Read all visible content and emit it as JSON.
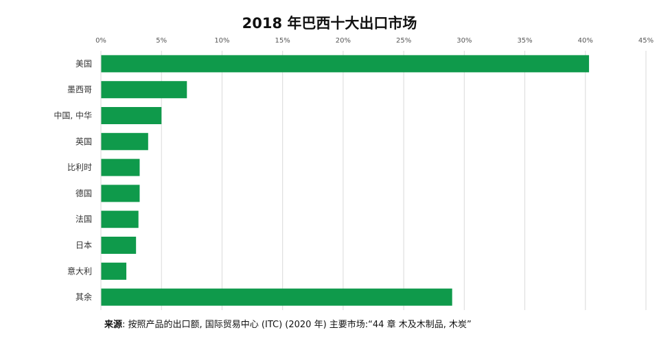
{
  "chart_data": {
    "type": "bar",
    "orientation": "horizontal",
    "title": "2018 年巴西十大出口市场",
    "categories": [
      "美国",
      "墨西哥",
      "中国, 中华",
      "英国",
      "比利时",
      "德国",
      "法国",
      "日本",
      "意大利",
      "其余"
    ],
    "values": [
      40.3,
      7.1,
      5.0,
      3.9,
      3.2,
      3.2,
      3.1,
      2.9,
      2.1,
      29.0
    ],
    "x_ticks": [
      "0%",
      "5%",
      "10%",
      "15%",
      "20%",
      "25%",
      "30%",
      "35%",
      "40%",
      "45%"
    ],
    "xlim": [
      0,
      45
    ],
    "x_axis_position": "top",
    "grid": true,
    "bar_color": "#0f9a4b",
    "source_label": "来源",
    "source_text": ": 按照产品的出口额, 国际贸易中心 (ITC) (2020 年) 主要市场:“44 章 木及木制品, 木炭”"
  }
}
